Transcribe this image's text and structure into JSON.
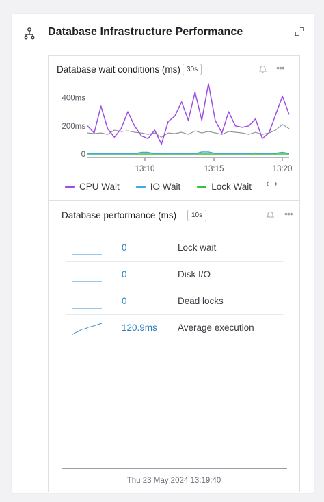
{
  "panel": {
    "title": "Database Infrastructure Performance",
    "icons": {
      "hierarchy": "hierarchy-icon",
      "expand": "expand-icon"
    }
  },
  "wait_card": {
    "title": "Database wait conditions (ms)",
    "interval": "30s",
    "icons": {
      "bell": "bell-icon",
      "more": "more-icon"
    },
    "legend": [
      {
        "label": "CPU Wait",
        "color": "#9b4ee6"
      },
      {
        "label": "IO Wait",
        "color": "#3fa9e0"
      },
      {
        "label": "Lock Wait",
        "color": "#3cbf3c"
      }
    ],
    "pager": {
      "prev": "‹",
      "next": "›"
    }
  },
  "perf_card": {
    "title": "Database performance (ms)",
    "interval": "10s",
    "icons": {
      "bell": "bell-icon",
      "more": "more-icon"
    },
    "metrics": [
      {
        "value": "0",
        "label": "Lock wait"
      },
      {
        "value": "0",
        "label": "Disk I/O"
      },
      {
        "value": "0",
        "label": "Dead locks"
      },
      {
        "value": "120.9ms",
        "label": "Average execution"
      }
    ],
    "timestamp": "Thu 23 May 2024 13:19:40"
  },
  "chart_data": {
    "type": "line",
    "title": "Database wait conditions (ms)",
    "ylim": [
      0,
      500
    ],
    "yticks": [
      "0",
      "200ms",
      "400ms"
    ],
    "xticks": [
      "13:10",
      "13:15",
      "13:20"
    ],
    "x_range": [
      "13:05:30",
      "13:20:30"
    ],
    "legend_position": "bottom",
    "series": [
      {
        "name": "CPU Wait",
        "color": "#9b4ee6",
        "values": [
          200,
          150,
          340,
          180,
          120,
          180,
          300,
          200,
          130,
          110,
          170,
          70,
          230,
          270,
          370,
          240,
          440,
          240,
          500,
          240,
          150,
          300,
          200,
          190,
          200,
          250,
          110,
          150,
          280,
          410,
          280
        ]
      },
      {
        "name": "IO Wait",
        "color": "#3fa9e0",
        "values": [
          2,
          2,
          3,
          2,
          3,
          2,
          3,
          2,
          12,
          12,
          3,
          5,
          3,
          2,
          3,
          3,
          2,
          15,
          15,
          5,
          2,
          3,
          3,
          2,
          3,
          8,
          2,
          3,
          6,
          12,
          4
        ]
      },
      {
        "name": "Lock Wait",
        "color": "#3cbf3c",
        "values": [
          0,
          0,
          0,
          0,
          0,
          0,
          0,
          0,
          0,
          0,
          0,
          0,
          0,
          0,
          0,
          0,
          0,
          0,
          0,
          0,
          0,
          0,
          0,
          0,
          0,
          0,
          0,
          0,
          0,
          0,
          0
        ]
      },
      {
        "name": "",
        "color": "#8a8d94",
        "values": [
          150,
          145,
          150,
          140,
          170,
          160,
          165,
          155,
          150,
          140,
          150,
          120,
          150,
          145,
          155,
          140,
          165,
          150,
          160,
          150,
          140,
          160,
          155,
          150,
          140,
          155,
          140,
          150,
          170,
          210,
          180
        ]
      }
    ]
  },
  "sparklines": [
    [
      0,
      0,
      0,
      0,
      0,
      0,
      0,
      0,
      0,
      0
    ],
    [
      0,
      0,
      0,
      0,
      0,
      0,
      0,
      0,
      0,
      0
    ],
    [
      0,
      0,
      0,
      0,
      0,
      0,
      0,
      0,
      0,
      0
    ],
    [
      100,
      104,
      106,
      110,
      111,
      114,
      115,
      117,
      119,
      121
    ]
  ]
}
